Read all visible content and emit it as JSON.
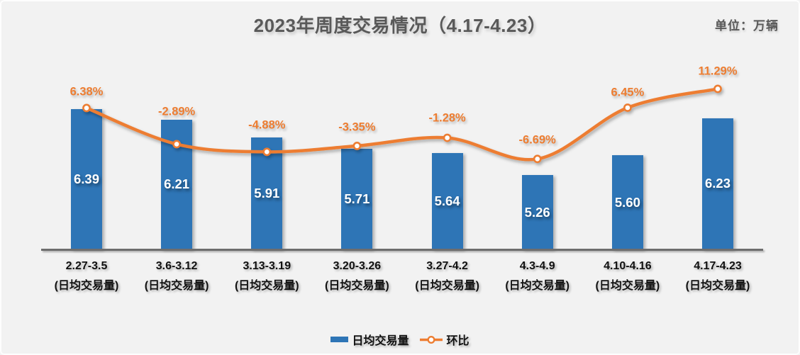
{
  "title": "2023年周度交易情况（4.17-4.23）",
  "unit_label": "单位：万辆",
  "legend": {
    "items": [
      {
        "label": "日均交易量",
        "series_type": "bar"
      },
      {
        "label": "环比",
        "series_type": "line"
      }
    ]
  },
  "colors": {
    "background": "#F2F2F2",
    "bar": "#2E75B6",
    "line": "#ED7D31",
    "title_text": "#595959",
    "axis_line": "#6E6E6E",
    "bar_value_text": "#FFFFFF",
    "category_text": "#111111"
  },
  "chart_data": {
    "type": "combo",
    "categories": [
      "2.27-3.5",
      "3.6-3.12",
      "3.13-3.19",
      "3.20-3.26",
      "3.27-4.2",
      "4.3-4.9",
      "4.10-4.16",
      "4.17-4.23"
    ],
    "category_sublabel": "(日均交易量)",
    "series": [
      {
        "name": "日均交易量",
        "type": "bar",
        "unit": "万辆",
        "values": [
          6.39,
          6.21,
          5.91,
          5.71,
          5.64,
          5.26,
          5.6,
          6.23
        ],
        "data_labels": [
          "6.39",
          "6.21",
          "5.91",
          "5.71",
          "5.64",
          "5.26",
          "5.60",
          "6.23"
        ]
      },
      {
        "name": "环比",
        "type": "line",
        "unit": "%",
        "values": [
          6.38,
          -2.89,
          -4.88,
          -3.35,
          -1.28,
          -6.69,
          6.45,
          11.29
        ],
        "data_labels": [
          "6.38%",
          "-2.89%",
          "-4.88%",
          "-3.35%",
          "-1.28%",
          "-6.69%",
          "6.45%",
          "11.29%"
        ]
      }
    ],
    "layout_hints": {
      "bar_axis_min": 4.0,
      "axes_value_labels_hidden": true,
      "gridlines": false,
      "smoothed_line": true,
      "legend_position": "bottom",
      "bar_label_position": "inside-center",
      "line_label_position": "above-point"
    }
  }
}
